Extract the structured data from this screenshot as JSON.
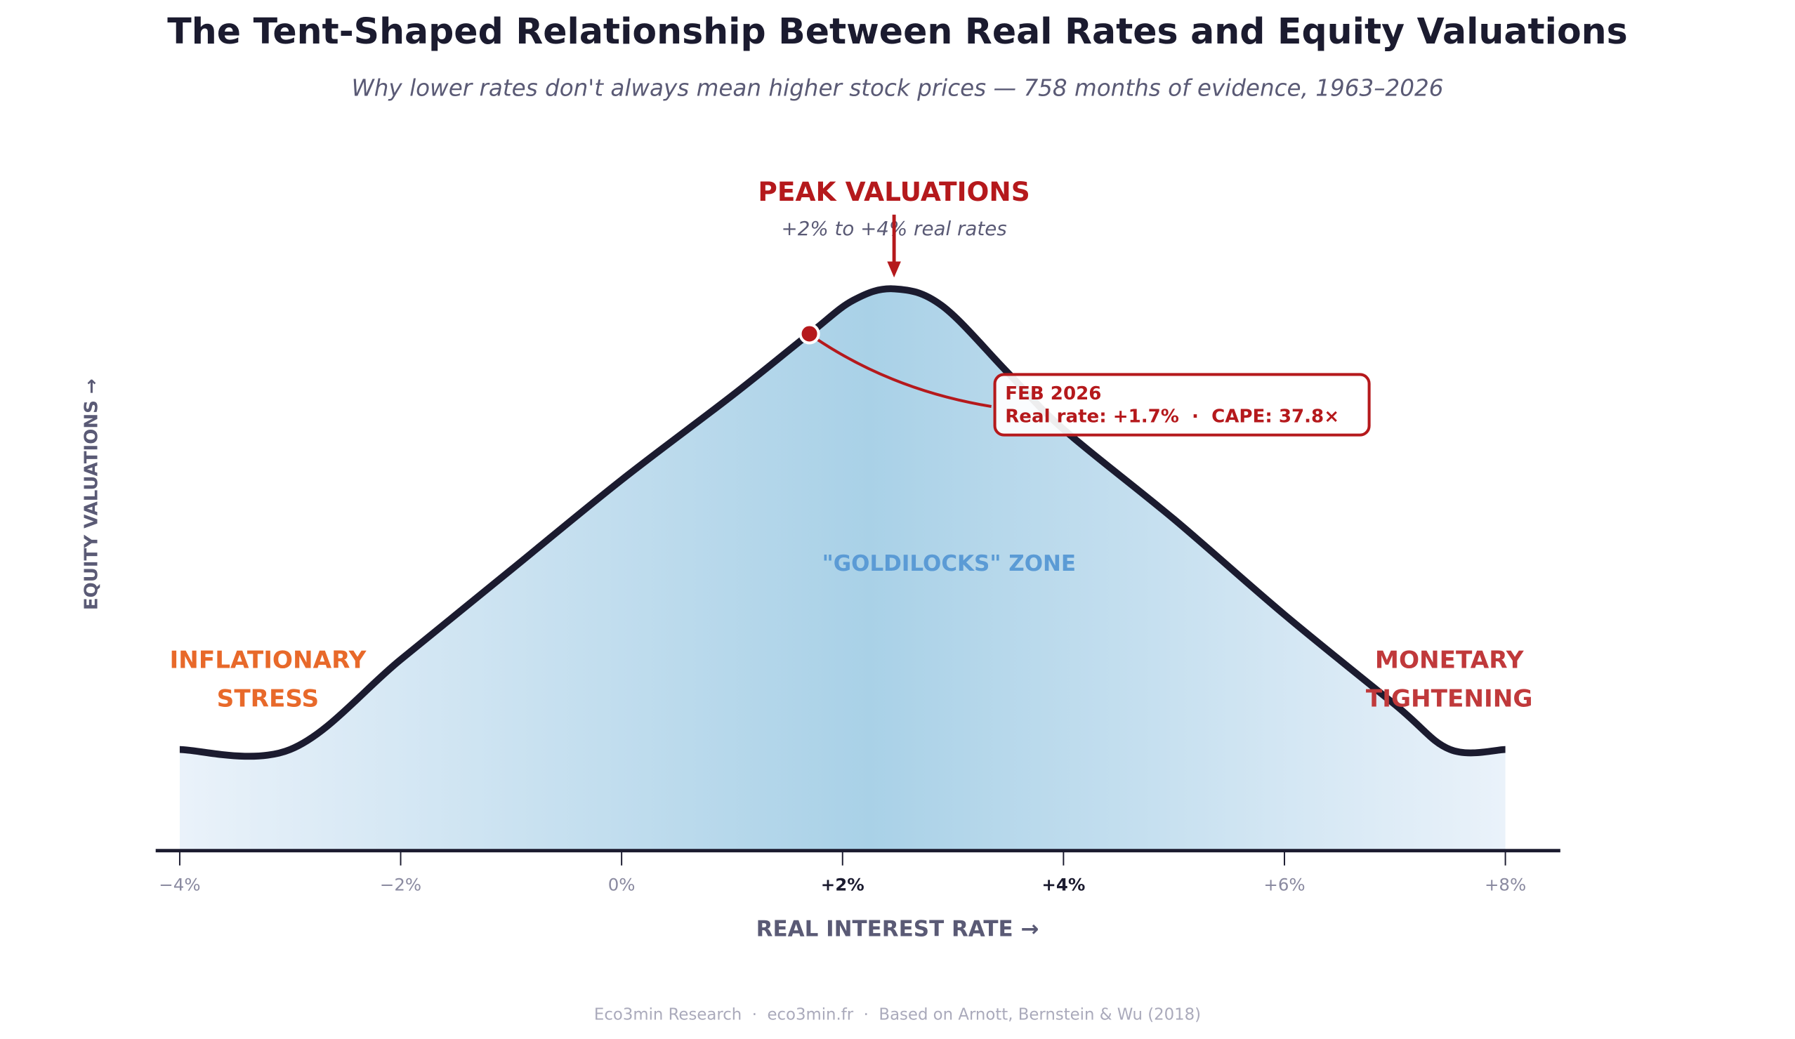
{
  "title": "The Tent-Shaped Relationship Between Real Rates and Equity Valuations",
  "subtitle": "Why lower rates don't always mean higher stock prices — 758 months of evidence, 1963–2026",
  "footer": "Eco3min Research  ·  eco3min.fr  ·  Based on Arnott, Bernstein & Wu (2018)",
  "colors": {
    "title": "#1b1b2f",
    "curve": "#1b1b2f",
    "fill_center": "#a9d1e7",
    "fill_edge": "#eaf2fa",
    "inflation": "#e8692a",
    "monetary": "#c0393b",
    "peak": "#b5191c",
    "goldilocks": "#5b9bd5",
    "muted": "#5a5a75"
  },
  "chart_data": {
    "type": "area",
    "title": "The Tent-Shaped Relationship Between Real Rates and Equity Valuations",
    "xlabel": "REAL INTEREST RATE  →",
    "ylabel": "EQUITY  VALUATIONS  →",
    "xlim": [
      -4,
      8
    ],
    "ylim": [
      0,
      100
    ],
    "x_ticks": [
      "−4%",
      "−2%",
      "0%",
      "+2%",
      "+4%",
      "+6%",
      "+8%"
    ],
    "x_tick_values": [
      -4,
      -2,
      0,
      2,
      4,
      6,
      8
    ],
    "highlighted_ticks": [
      "+2%",
      "+4%"
    ],
    "y_ticks": [],
    "grid": false,
    "series": [
      {
        "x": [
          -4,
          -3,
          -2,
          -1,
          0,
          1,
          1.7,
          2.1,
          2.47,
          2.9,
          3.5,
          4,
          5,
          6,
          7,
          7.5,
          8
        ],
        "y": [
          18,
          18,
          34,
          50,
          66,
          81,
          92,
          98,
          100,
          97,
          85,
          75,
          59,
          42,
          26,
          18,
          18
        ]
      }
    ],
    "highlight_point": {
      "x": 1.7,
      "y": 92,
      "label_line1": "FEB 2026",
      "label_line2": "Real rate: +1.7%  ·  CAPE: 37.8×"
    },
    "annotations": {
      "peak_title": "PEAK VALUATIONS",
      "peak_sub": "+2% to +4% real rates",
      "peak_x": 2.47,
      "goldilocks": "\"GOLDILOCKS\"  ZONE",
      "inflation_line1": "INFLATIONARY",
      "inflation_line2": "STRESS",
      "monetary_line1": "MONETARY",
      "monetary_line2": "TIGHTENING"
    }
  }
}
